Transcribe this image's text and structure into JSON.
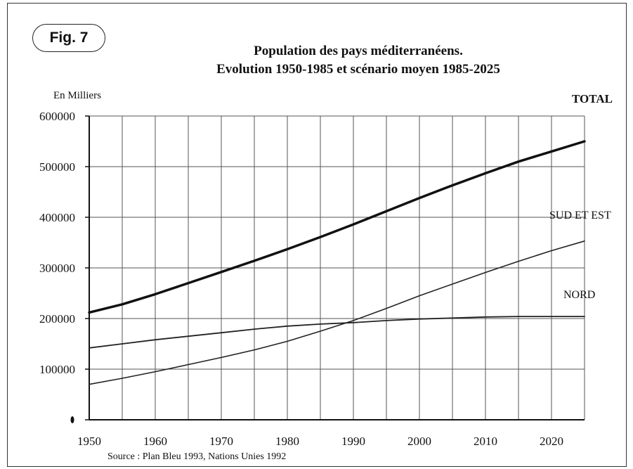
{
  "figure_label": "Fig. 7",
  "source": "Source : Plan Bleu 1993, Nations Unies 1992",
  "chart_data": {
    "type": "line",
    "title": "Population des pays méditerranéens.",
    "subtitle": "Evolution 1950-1985 et scénario moyen 1985-2025",
    "ylabel": "En Milliers",
    "xlabel": "",
    "xlim": [
      1950,
      2025
    ],
    "ylim": [
      0,
      600000
    ],
    "x_ticks": [
      1950,
      1960,
      1970,
      1980,
      1990,
      2000,
      2010,
      2020
    ],
    "y_ticks": [
      0,
      100000,
      200000,
      300000,
      400000,
      500000,
      600000
    ],
    "y_tick_labels": [
      "",
      "100000",
      "200000",
      "300000",
      "400000",
      "500000",
      "600000"
    ],
    "grid": true,
    "x": [
      1950,
      1955,
      1960,
      1965,
      1970,
      1975,
      1980,
      1985,
      1990,
      1995,
      2000,
      2005,
      2010,
      2015,
      2020,
      2025
    ],
    "series": [
      {
        "name": "TOTAL",
        "color": "#111111",
        "values": [
          212000,
          228000,
          248000,
          270000,
          292000,
          314000,
          337000,
          361000,
          386000,
          412000,
          438000,
          463000,
          487000,
          510000,
          530000,
          550000
        ]
      },
      {
        "name": "SUD ET EST",
        "color": "#222222",
        "values": [
          70000,
          82000,
          95000,
          109000,
          123000,
          138000,
          155000,
          175000,
          196000,
          220000,
          245000,
          268000,
          291000,
          313000,
          334000,
          353000
        ]
      },
      {
        "name": "NORD",
        "color": "#222222",
        "values": [
          142000,
          150000,
          158000,
          165000,
          172000,
          179000,
          185000,
          189000,
          192000,
          196000,
          199000,
          201000,
          203000,
          204000,
          204000,
          204000
        ]
      }
    ]
  }
}
